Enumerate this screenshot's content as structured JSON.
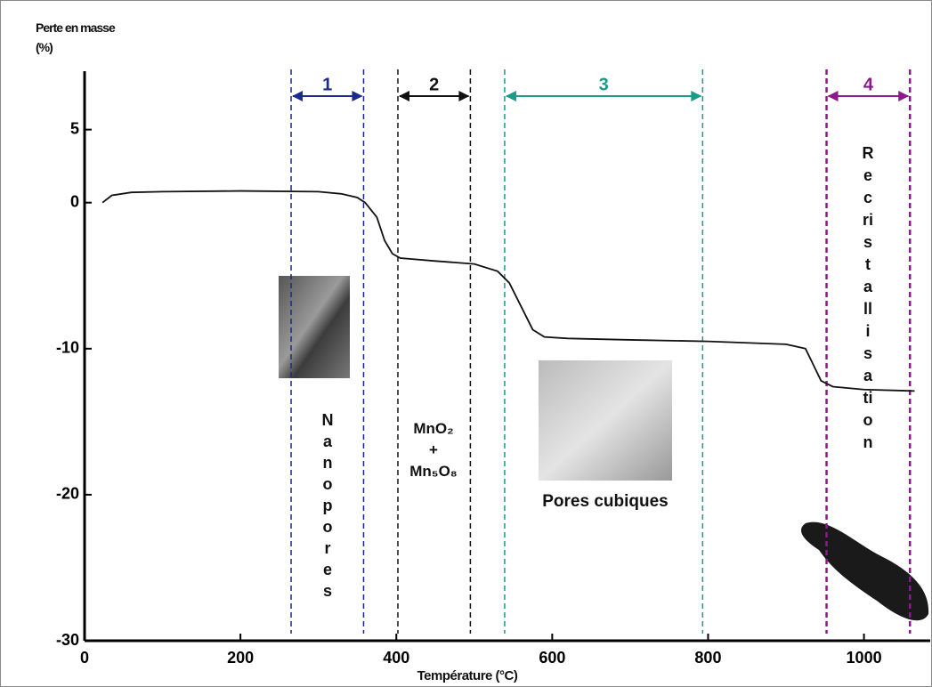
{
  "chart_data": {
    "type": "line",
    "y_label": "Perte en masse (%)",
    "x_label": "Température (°C)",
    "x": [
      23,
      35,
      60,
      100,
      200,
      300,
      330,
      350,
      360,
      375,
      385,
      395,
      405,
      450,
      500,
      530,
      545,
      560,
      575,
      590,
      620,
      700,
      800,
      900,
      925,
      935,
      945,
      960,
      1000,
      1065
    ],
    "values": [
      0,
      0.5,
      0.7,
      0.75,
      0.8,
      0.75,
      0.6,
      0.35,
      0,
      -1,
      -2.6,
      -3.5,
      -3.8,
      -4,
      -4.2,
      -4.7,
      -5.5,
      -7.1,
      -8.7,
      -9.2,
      -9.3,
      -9.4,
      -9.5,
      -9.7,
      -10,
      -11.1,
      -12.2,
      -12.6,
      -12.8,
      -12.9
    ],
    "color": "#111111",
    "xlim": [
      0,
      1085
    ],
    "ylim": [
      -30,
      9
    ],
    "xticks": [
      0,
      200,
      400,
      600,
      800,
      1000
    ],
    "yticks": [
      5,
      0,
      -10,
      -20,
      -30
    ],
    "regions": [
      {
        "label": "1",
        "start": 265,
        "end": 358,
        "color": "#1c2a8c"
      },
      {
        "label": "2",
        "start": 402,
        "end": 495,
        "color": "#111111"
      },
      {
        "label": "3",
        "start": 539,
        "end": 793,
        "color": "#1a9a88"
      },
      {
        "label": "4",
        "start": 952,
        "end": 1059,
        "color": "#8b1a8b"
      }
    ],
    "annotations": [
      "Nanopores",
      "MnO₂\n+\nMn₅O₈",
      "Pores cubiques",
      "Recristallisation"
    ]
  }
}
